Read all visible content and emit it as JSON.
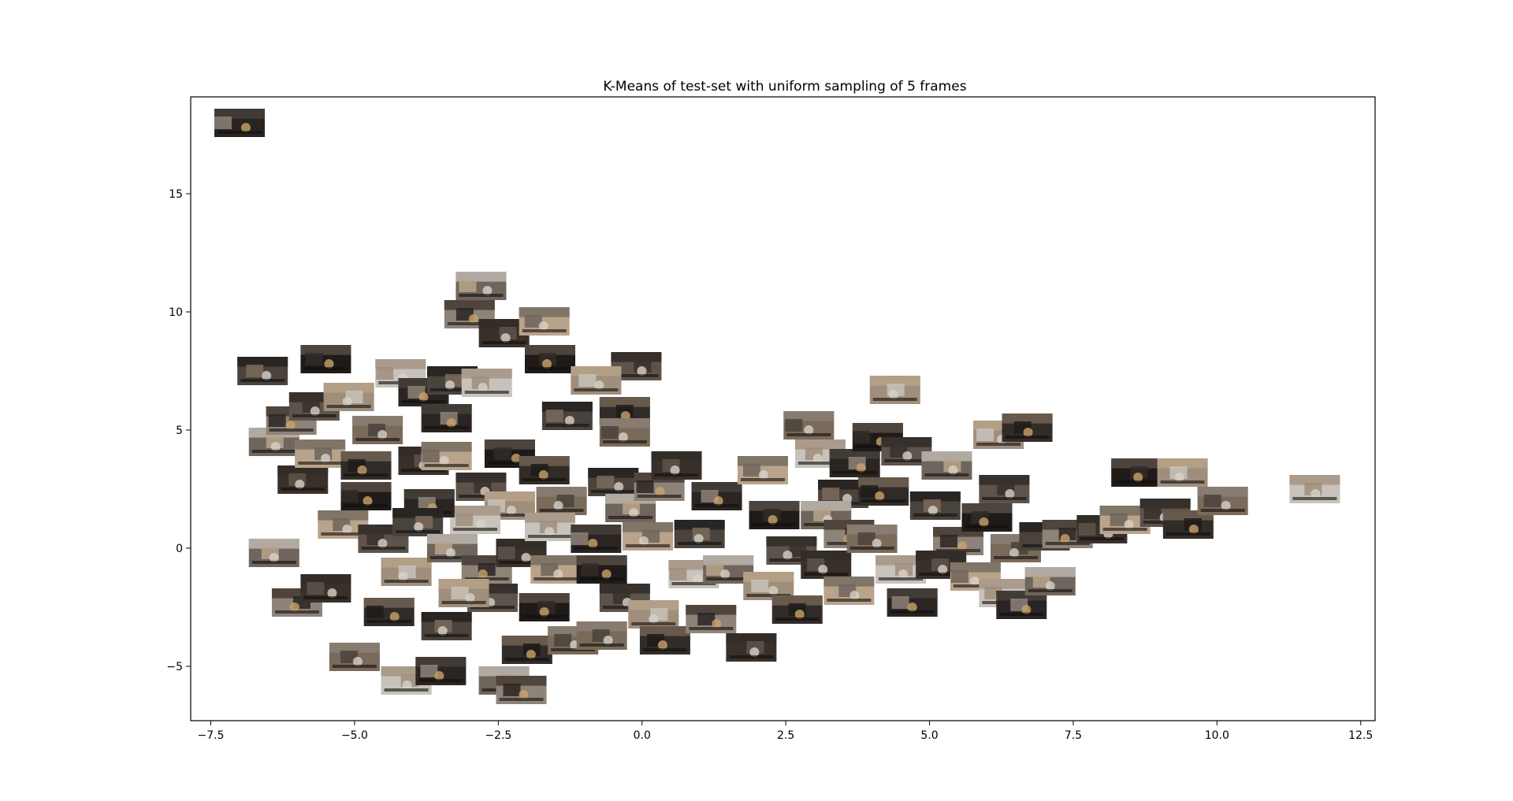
{
  "chart_data": {
    "type": "scatter",
    "title": "K-Means of test-set with uniform sampling of 5 frames",
    "xlabel": "",
    "ylabel": "",
    "xlim": [
      -7.85,
      12.75
    ],
    "ylim": [
      -7.3,
      19.1
    ],
    "xticks": [
      -7.5,
      -5.0,
      -2.5,
      0.0,
      2.5,
      5.0,
      7.5,
      10.0,
      12.5
    ],
    "xtick_labels": [
      "−7.5",
      "−5.0",
      "−2.5",
      "0.0",
      "2.5",
      "5.0",
      "7.5",
      "10.0",
      "12.5"
    ],
    "yticks": [
      -5,
      0,
      5,
      10,
      15
    ],
    "ytick_labels": [
      "−5",
      "0",
      "5",
      "10",
      "15"
    ],
    "grid": false,
    "legend": "none",
    "marker": "image thumbnail",
    "point_colors": [
      "#2a2522",
      "#4a433d",
      "#6f655c",
      "#8e8378",
      "#3a302a",
      "#b9a38a",
      "#1e1b19",
      "#5d534b",
      "#a08e7c",
      "#322c28",
      "#7a6a5a",
      "#c7c2bb"
    ],
    "points": [
      {
        "x": -7.0,
        "y": 18.0
      },
      {
        "x": -6.6,
        "y": 7.5
      },
      {
        "x": -6.4,
        "y": 4.5
      },
      {
        "x": -6.1,
        "y": 5.4
      },
      {
        "x": -5.9,
        "y": 2.9
      },
      {
        "x": -5.6,
        "y": 4.0
      },
      {
        "x": -5.5,
        "y": 8.0
      },
      {
        "x": -5.7,
        "y": 6.0
      },
      {
        "x": -5.1,
        "y": 6.4
      },
      {
        "x": -4.8,
        "y": 3.5
      },
      {
        "x": -4.6,
        "y": 5.0
      },
      {
        "x": -4.2,
        "y": 7.4
      },
      {
        "x": -3.8,
        "y": 6.6
      },
      {
        "x": -3.3,
        "y": 7.1
      },
      {
        "x": -2.8,
        "y": 11.1
      },
      {
        "x": -3.0,
        "y": 9.9
      },
      {
        "x": -2.4,
        "y": 9.1
      },
      {
        "x": -1.7,
        "y": 9.6
      },
      {
        "x": -1.6,
        "y": 8.0
      },
      {
        "x": -0.1,
        "y": 7.7
      },
      {
        "x": -0.8,
        "y": 7.1
      },
      {
        "x": -0.3,
        "y": 5.8
      },
      {
        "x": -0.3,
        "y": 4.9
      },
      {
        "x": -2.7,
        "y": 7.0
      },
      {
        "x": -3.4,
        "y": 5.5
      },
      {
        "x": -1.3,
        "y": 5.6
      },
      {
        "x": -6.4,
        "y": -0.2
      },
      {
        "x": -6.0,
        "y": -2.3
      },
      {
        "x": -5.5,
        "y": -1.7
      },
      {
        "x": -5.2,
        "y": 1.0
      },
      {
        "x": -4.8,
        "y": 2.2
      },
      {
        "x": -4.5,
        "y": 0.4
      },
      {
        "x": -4.1,
        "y": -1.0
      },
      {
        "x": -4.4,
        "y": -2.7
      },
      {
        "x": -5.0,
        "y": -4.6
      },
      {
        "x": -4.1,
        "y": -5.6
      },
      {
        "x": -3.5,
        "y": -5.2
      },
      {
        "x": -3.4,
        "y": -3.3
      },
      {
        "x": -2.4,
        "y": -5.6
      },
      {
        "x": -2.1,
        "y": -6.0
      },
      {
        "x": -3.8,
        "y": 3.7
      },
      {
        "x": -3.4,
        "y": 3.9
      },
      {
        "x": -2.3,
        "y": 4.0
      },
      {
        "x": -2.8,
        "y": 2.6
      },
      {
        "x": -2.3,
        "y": 1.8
      },
      {
        "x": -1.7,
        "y": 3.3
      },
      {
        "x": -1.4,
        "y": 2.0
      },
      {
        "x": -2.9,
        "y": 1.2
      },
      {
        "x": -3.7,
        "y": 1.9
      },
      {
        "x": -3.9,
        "y": 1.1
      },
      {
        "x": -3.3,
        "y": 0.0
      },
      {
        "x": -2.7,
        "y": -0.9
      },
      {
        "x": -2.1,
        "y": -0.2
      },
      {
        "x": -1.5,
        "y": -0.9
      },
      {
        "x": -1.7,
        "y": -2.5
      },
      {
        "x": -2.6,
        "y": -2.1
      },
      {
        "x": -3.1,
        "y": -1.9
      },
      {
        "x": -2.0,
        "y": -4.3
      },
      {
        "x": -1.2,
        "y": -3.9
      },
      {
        "x": -1.6,
        "y": 0.9
      },
      {
        "x": -0.8,
        "y": 0.4
      },
      {
        "x": -0.5,
        "y": 2.8
      },
      {
        "x": -0.2,
        "y": 1.7
      },
      {
        "x": 0.3,
        "y": 2.6
      },
      {
        "x": 0.6,
        "y": 3.5
      },
      {
        "x": 0.1,
        "y": 0.5
      },
      {
        "x": -0.7,
        "y": -0.9
      },
      {
        "x": -0.3,
        "y": -2.1
      },
      {
        "x": 0.2,
        "y": -2.8
      },
      {
        "x": 0.4,
        "y": -3.9
      },
      {
        "x": -0.7,
        "y": -3.7
      },
      {
        "x": 0.9,
        "y": -1.1
      },
      {
        "x": 1.3,
        "y": 2.2
      },
      {
        "x": 1.0,
        "y": 0.6
      },
      {
        "x": 1.5,
        "y": -0.9
      },
      {
        "x": 1.2,
        "y": -3.0
      },
      {
        "x": 1.9,
        "y": -4.2
      },
      {
        "x": 2.1,
        "y": 3.3
      },
      {
        "x": 2.3,
        "y": 1.4
      },
      {
        "x": 2.6,
        "y": -0.1
      },
      {
        "x": 2.2,
        "y": -1.6
      },
      {
        "x": 2.7,
        "y": -2.6
      },
      {
        "x": 2.9,
        "y": 5.2
      },
      {
        "x": 3.1,
        "y": 4.0
      },
      {
        "x": 3.7,
        "y": 3.6
      },
      {
        "x": 3.5,
        "y": 2.3
      },
      {
        "x": 3.2,
        "y": 1.4
      },
      {
        "x": 3.6,
        "y": 0.6
      },
      {
        "x": 3.2,
        "y": -0.7
      },
      {
        "x": 3.6,
        "y": -1.8
      },
      {
        "x": 4.1,
        "y": 4.7
      },
      {
        "x": 4.6,
        "y": 4.1
      },
      {
        "x": 4.4,
        "y": 6.7
      },
      {
        "x": 4.2,
        "y": 2.4
      },
      {
        "x": 4.0,
        "y": 0.4
      },
      {
        "x": 4.5,
        "y": -0.9
      },
      {
        "x": 4.7,
        "y": -2.3
      },
      {
        "x": 5.1,
        "y": 1.8
      },
      {
        "x": 5.3,
        "y": 3.5
      },
      {
        "x": 5.5,
        "y": 0.3
      },
      {
        "x": 5.2,
        "y": -0.7
      },
      {
        "x": 5.8,
        "y": -1.2
      },
      {
        "x": 6.0,
        "y": 1.3
      },
      {
        "x": 6.3,
        "y": 2.5
      },
      {
        "x": 6.2,
        "y": 4.8
      },
      {
        "x": 6.7,
        "y": 5.1
      },
      {
        "x": 6.5,
        "y": 0.0
      },
      {
        "x": 6.3,
        "y": -1.9
      },
      {
        "x": 6.6,
        "y": -2.4
      },
      {
        "x": 7.0,
        "y": 0.5
      },
      {
        "x": 7.1,
        "y": -1.4
      },
      {
        "x": 7.4,
        "y": 0.6
      },
      {
        "x": 8.0,
        "y": 0.8
      },
      {
        "x": 8.4,
        "y": 1.2
      },
      {
        "x": 8.6,
        "y": 3.2
      },
      {
        "x": 9.1,
        "y": 1.5
      },
      {
        "x": 9.4,
        "y": 3.2
      },
      {
        "x": 9.5,
        "y": 1.0
      },
      {
        "x": 10.1,
        "y": 2.0
      },
      {
        "x": 11.7,
        "y": 2.5
      }
    ]
  }
}
